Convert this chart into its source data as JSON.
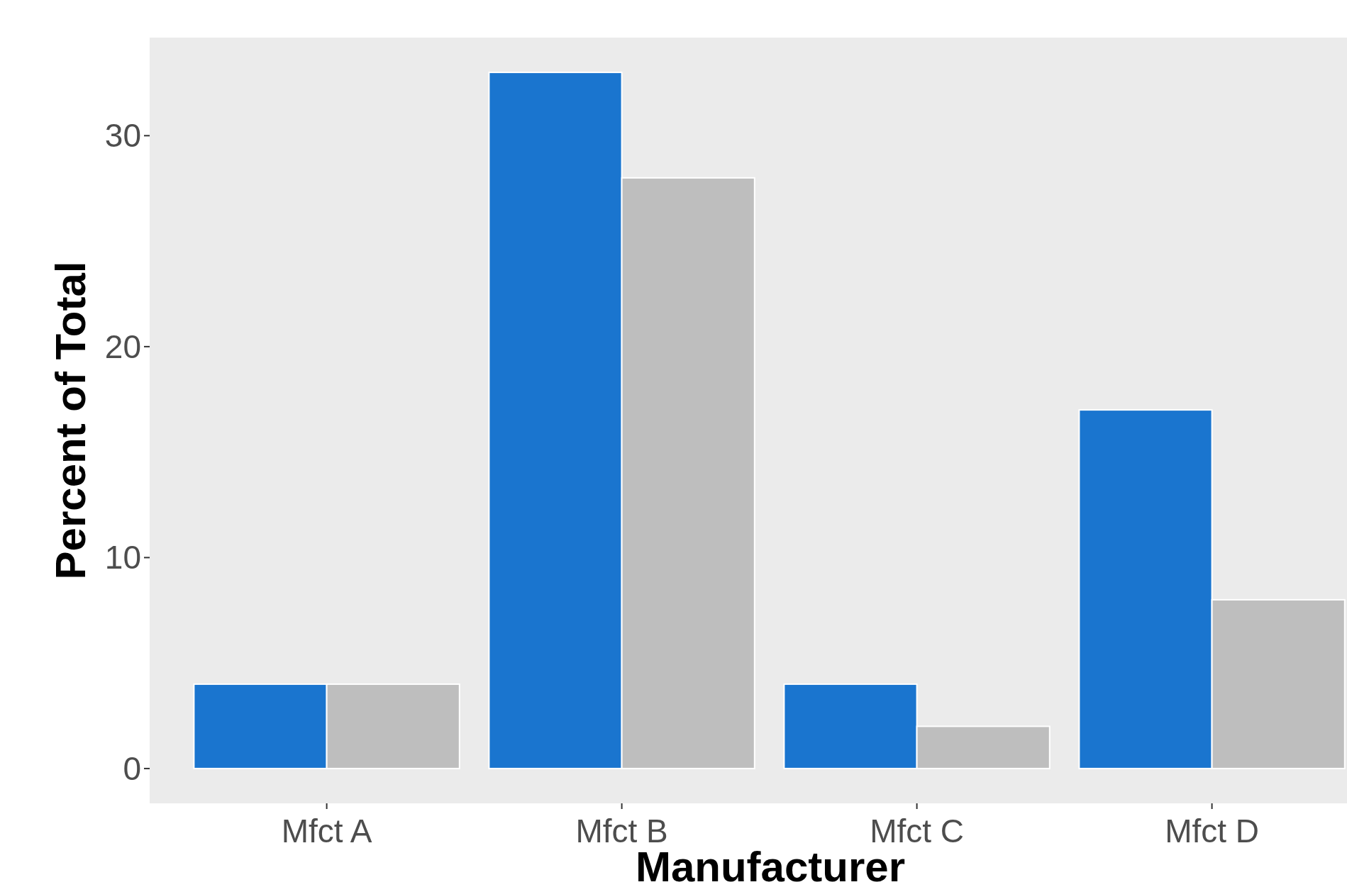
{
  "chart_data": {
    "type": "bar",
    "xlabel": "Manufacturer",
    "ylabel": "Percent of Total",
    "categories": [
      "Mfct A",
      "Mfct B",
      "Mfct C",
      "Mfct D"
    ],
    "series": [
      {
        "color": "#1a75cf",
        "values": [
          4,
          33,
          4,
          17
        ]
      },
      {
        "color": "#bebebe",
        "values": [
          4,
          28,
          2,
          8
        ]
      }
    ],
    "ylim": [
      -1.65,
      34.65
    ],
    "yticks": [
      0,
      10,
      20,
      30
    ]
  }
}
